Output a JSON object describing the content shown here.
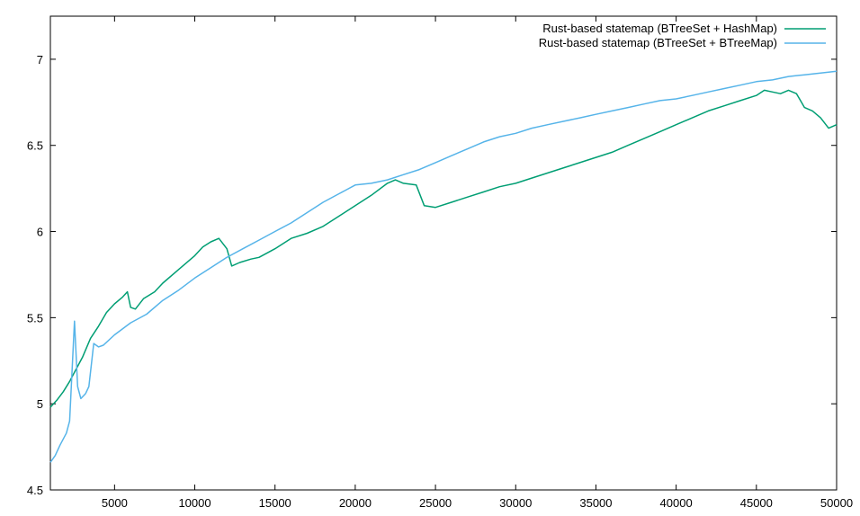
{
  "chart_data": {
    "type": "line",
    "title": "",
    "xlabel": "",
    "ylabel": "",
    "xlim": [
      1000,
      50000
    ],
    "ylim": [
      4.5,
      7.25
    ],
    "x_ticks": [
      5000,
      10000,
      15000,
      20000,
      25000,
      30000,
      35000,
      40000,
      45000,
      50000
    ],
    "x_tick_labels": [
      "5000",
      "10000",
      "15000",
      "20000",
      "25000",
      "30000",
      "35000",
      "40000",
      "45000",
      "50000"
    ],
    "y_ticks": [
      4.5,
      5,
      5.5,
      6,
      6.5,
      7
    ],
    "y_tick_labels": [
      "4.5",
      "5",
      "5.5",
      "6",
      "6.5",
      "7"
    ],
    "grid": false,
    "legend_position": "top-right",
    "series": [
      {
        "name": "Rust-based statemap (BTreeSet + HashMap)",
        "color": "#009e73",
        "points": [
          [
            1000,
            4.98
          ],
          [
            1400,
            5.02
          ],
          [
            1800,
            5.07
          ],
          [
            2200,
            5.13
          ],
          [
            2600,
            5.2
          ],
          [
            3000,
            5.27
          ],
          [
            3500,
            5.38
          ],
          [
            4000,
            5.45
          ],
          [
            4500,
            5.53
          ],
          [
            5000,
            5.58
          ],
          [
            5500,
            5.62
          ],
          [
            5800,
            5.65
          ],
          [
            6000,
            5.56
          ],
          [
            6300,
            5.55
          ],
          [
            6800,
            5.61
          ],
          [
            7500,
            5.65
          ],
          [
            8000,
            5.7
          ],
          [
            9000,
            5.78
          ],
          [
            10000,
            5.86
          ],
          [
            10500,
            5.91
          ],
          [
            11000,
            5.94
          ],
          [
            11500,
            5.96
          ],
          [
            12000,
            5.9
          ],
          [
            12300,
            5.8
          ],
          [
            12800,
            5.82
          ],
          [
            13500,
            5.84
          ],
          [
            14000,
            5.85
          ],
          [
            15000,
            5.9
          ],
          [
            16000,
            5.96
          ],
          [
            17000,
            5.99
          ],
          [
            18000,
            6.03
          ],
          [
            19000,
            6.09
          ],
          [
            20000,
            6.15
          ],
          [
            21000,
            6.21
          ],
          [
            22000,
            6.28
          ],
          [
            22500,
            6.3
          ],
          [
            23000,
            6.28
          ],
          [
            23800,
            6.27
          ],
          [
            24300,
            6.15
          ],
          [
            25000,
            6.14
          ],
          [
            26000,
            6.17
          ],
          [
            27000,
            6.2
          ],
          [
            28000,
            6.23
          ],
          [
            29000,
            6.26
          ],
          [
            30000,
            6.28
          ],
          [
            31000,
            6.31
          ],
          [
            32000,
            6.34
          ],
          [
            33000,
            6.37
          ],
          [
            34000,
            6.4
          ],
          [
            35000,
            6.43
          ],
          [
            36000,
            6.46
          ],
          [
            37000,
            6.5
          ],
          [
            38000,
            6.54
          ],
          [
            39000,
            6.58
          ],
          [
            40000,
            6.62
          ],
          [
            41000,
            6.66
          ],
          [
            42000,
            6.7
          ],
          [
            43000,
            6.73
          ],
          [
            44000,
            6.76
          ],
          [
            45000,
            6.79
          ],
          [
            45500,
            6.82
          ],
          [
            46000,
            6.81
          ],
          [
            46500,
            6.8
          ],
          [
            47000,
            6.82
          ],
          [
            47500,
            6.8
          ],
          [
            48000,
            6.72
          ],
          [
            48500,
            6.7
          ],
          [
            49000,
            6.66
          ],
          [
            49500,
            6.6
          ],
          [
            50000,
            6.62
          ]
        ]
      },
      {
        "name": "Rust-based statemap (BTreeSet + BTreeMap)",
        "color": "#56b4e9",
        "points": [
          [
            1000,
            4.66
          ],
          [
            1300,
            4.7
          ],
          [
            1600,
            4.76
          ],
          [
            2000,
            4.83
          ],
          [
            2200,
            4.9
          ],
          [
            2500,
            5.48
          ],
          [
            2700,
            5.1
          ],
          [
            2900,
            5.03
          ],
          [
            3200,
            5.06
          ],
          [
            3400,
            5.1
          ],
          [
            3700,
            5.35
          ],
          [
            4000,
            5.33
          ],
          [
            4300,
            5.34
          ],
          [
            5000,
            5.4
          ],
          [
            6000,
            5.47
          ],
          [
            7000,
            5.52
          ],
          [
            8000,
            5.6
          ],
          [
            9000,
            5.66
          ],
          [
            10000,
            5.73
          ],
          [
            11000,
            5.79
          ],
          [
            12000,
            5.85
          ],
          [
            13000,
            5.9
          ],
          [
            14000,
            5.95
          ],
          [
            15000,
            6.0
          ],
          [
            16000,
            6.05
          ],
          [
            17000,
            6.11
          ],
          [
            18000,
            6.17
          ],
          [
            19000,
            6.22
          ],
          [
            20000,
            6.27
          ],
          [
            21000,
            6.28
          ],
          [
            22000,
            6.3
          ],
          [
            23000,
            6.33
          ],
          [
            24000,
            6.36
          ],
          [
            25000,
            6.4
          ],
          [
            26000,
            6.44
          ],
          [
            27000,
            6.48
          ],
          [
            28000,
            6.52
          ],
          [
            29000,
            6.55
          ],
          [
            30000,
            6.57
          ],
          [
            31000,
            6.6
          ],
          [
            32000,
            6.62
          ],
          [
            33000,
            6.64
          ],
          [
            34000,
            6.66
          ],
          [
            35000,
            6.68
          ],
          [
            36000,
            6.7
          ],
          [
            37000,
            6.72
          ],
          [
            38000,
            6.74
          ],
          [
            39000,
            6.76
          ],
          [
            40000,
            6.77
          ],
          [
            41000,
            6.79
          ],
          [
            42000,
            6.81
          ],
          [
            43000,
            6.83
          ],
          [
            44000,
            6.85
          ],
          [
            45000,
            6.87
          ],
          [
            46000,
            6.88
          ],
          [
            47000,
            6.9
          ],
          [
            48000,
            6.91
          ],
          [
            49000,
            6.92
          ],
          [
            50000,
            6.93
          ]
        ]
      }
    ]
  }
}
